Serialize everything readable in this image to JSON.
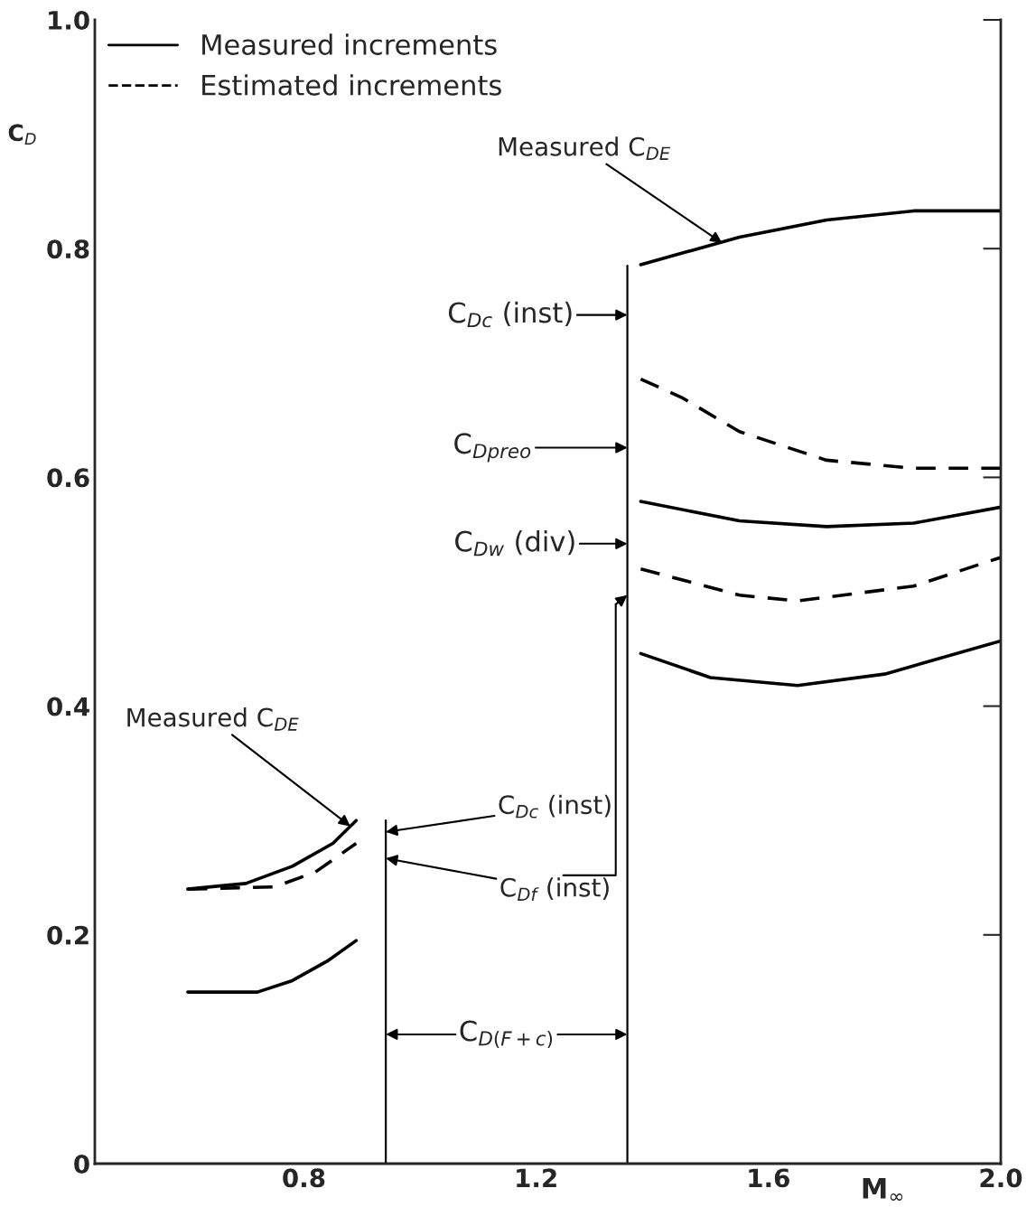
{
  "chart_data": {
    "type": "line",
    "xlabel": "M$_{∞}$",
    "ylabel": "C$_{D}$",
    "xlim": [
      0.44,
      2.0
    ],
    "ylim": [
      0,
      1.0
    ],
    "xticks": [
      0.8,
      1.2,
      1.6,
      {
        "value": 2.0,
        "label": "2.0"
      }
    ],
    "yticks": [
      0,
      0.2,
      0.4,
      0.6,
      0.8,
      {
        "value": 1.0,
        "label": "1.0"
      }
    ],
    "grid": false,
    "legend": "top left",
    "series": [
      {
        "name": "Measured increments",
        "color": "#000000",
        "line_style": "solid",
        "x": [
          0.6,
          0.7,
          0.78,
          0.85,
          0.89
        ],
        "values": [
          0.24,
          0.245,
          0.26,
          0.28,
          0.3
        ]
      },
      {
        "name": "Estimated increments",
        "color": "#000000",
        "line_style": "dashed",
        "x": [
          0.6,
          0.75,
          0.82,
          0.89
        ],
        "values": [
          0.24,
          0.242,
          0.255,
          0.28
        ]
      },
      {
        "color": "#000000",
        "line_style": "solid",
        "x": [
          0.6,
          0.72,
          0.78,
          0.84,
          0.89
        ],
        "values": [
          0.15,
          0.15,
          0.16,
          0.177,
          0.195
        ]
      },
      {
        "color": "#000000",
        "line_style": "solid",
        "x": [
          1.38,
          1.55,
          1.7,
          1.85,
          2.0
        ],
        "values": [
          0.786,
          0.81,
          0.825,
          0.833,
          0.833
        ]
      },
      {
        "color": "#000000",
        "line_style": "dashed",
        "x": [
          1.38,
          1.45,
          1.55,
          1.7,
          1.85,
          2.0
        ],
        "values": [
          0.686,
          0.67,
          0.64,
          0.615,
          0.608,
          0.608
        ]
      },
      {
        "color": "#000000",
        "line_style": "solid",
        "x": [
          1.38,
          1.55,
          1.7,
          1.85,
          2.0
        ],
        "values": [
          0.579,
          0.562,
          0.557,
          0.56,
          0.574
        ]
      },
      {
        "color": "#000000",
        "line_style": "dashed",
        "x": [
          1.38,
          1.55,
          1.65,
          1.85,
          2.0
        ],
        "values": [
          0.52,
          0.497,
          0.492,
          0.505,
          0.53
        ]
      },
      {
        "color": "#000000",
        "line_style": "solid",
        "x": [
          1.38,
          1.5,
          1.65,
          1.8,
          2.0
        ],
        "values": [
          0.446,
          0.425,
          0.418,
          0.428,
          0.457
        ]
      },
      {
        "color": "#000000",
        "line_style": "solid",
        "x": [
          0.941,
          0.941
        ],
        "values": [
          0,
          0.3
        ]
      },
      {
        "color": "#000000",
        "line_style": "solid",
        "x": [
          1.357,
          1.357
        ],
        "values": [
          0,
          0.785
        ]
      }
    ],
    "annotations": [
      {
        "text": "Measured C$_{DE}$",
        "x": 1.52,
        "y": 0.805
      },
      {
        "text": "Measured C$_{DE}$",
        "x": 0.88,
        "y": 0.295
      },
      "C$_{Dc}$ (inst)",
      "C$_{Dpreo}$",
      "C$_{Dw}$ (div)",
      {
        "text": "C$_{Dc}$ (inst)",
        "x": 0.941,
        "y": 0.29
      },
      {
        "text": "C$_{Df}$ (inst)",
        "x": 0.941,
        "y": 0.267
      },
      {
        "text": "C$_{D(F+c)}$",
        "x": 1.357,
        "y": 0.113
      }
    ]
  }
}
